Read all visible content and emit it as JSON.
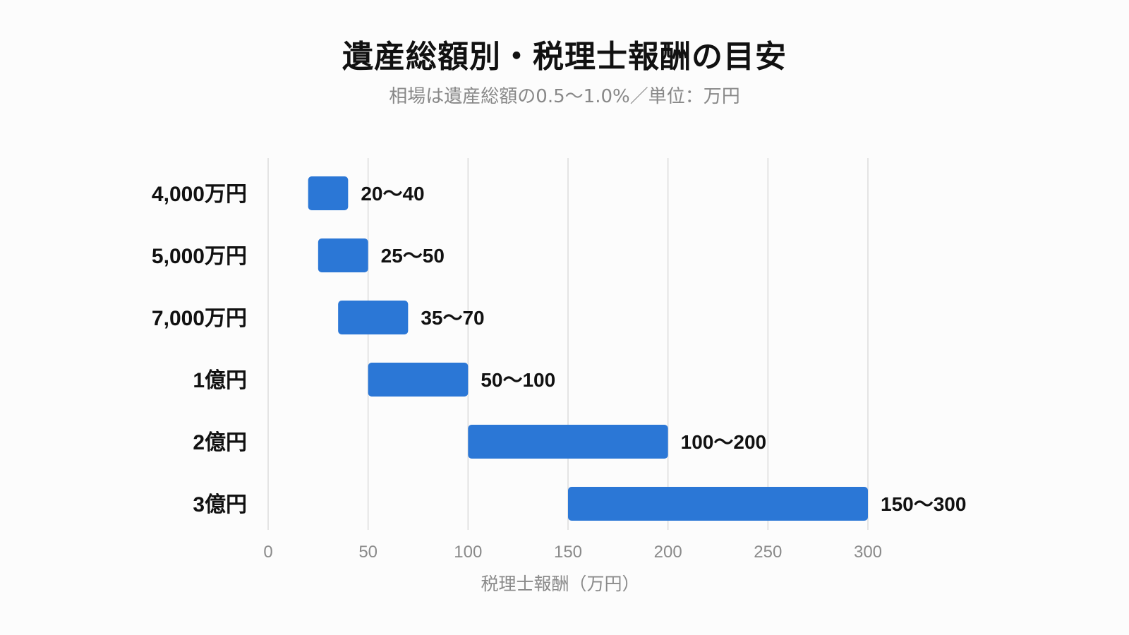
{
  "chart_data": {
    "type": "bar",
    "orientation": "horizontal",
    "style": "floating-range",
    "title": "遺産総額別・税理士報酬の目安",
    "subtitle": "相場は遺産総額の0.5〜1.0%／単位：万円",
    "xlabel": "税理士報酬（万円）",
    "ylabel": "",
    "xlim": [
      0,
      300
    ],
    "x_ticks": [
      0,
      50,
      100,
      150,
      200,
      250,
      300
    ],
    "grid": "vertical",
    "bar_color": "#2b77d6",
    "categories": [
      "4,000万円",
      "5,000万円",
      "7,000万円",
      "1億円",
      "2億円",
      "3億円"
    ],
    "ranges": [
      [
        20,
        40
      ],
      [
        25,
        50
      ],
      [
        35,
        70
      ],
      [
        50,
        100
      ],
      [
        100,
        200
      ],
      [
        150,
        300
      ]
    ],
    "labels": [
      "20〜40",
      "25〜50",
      "35〜70",
      "50〜100",
      "100〜200",
      "150〜300"
    ]
  }
}
